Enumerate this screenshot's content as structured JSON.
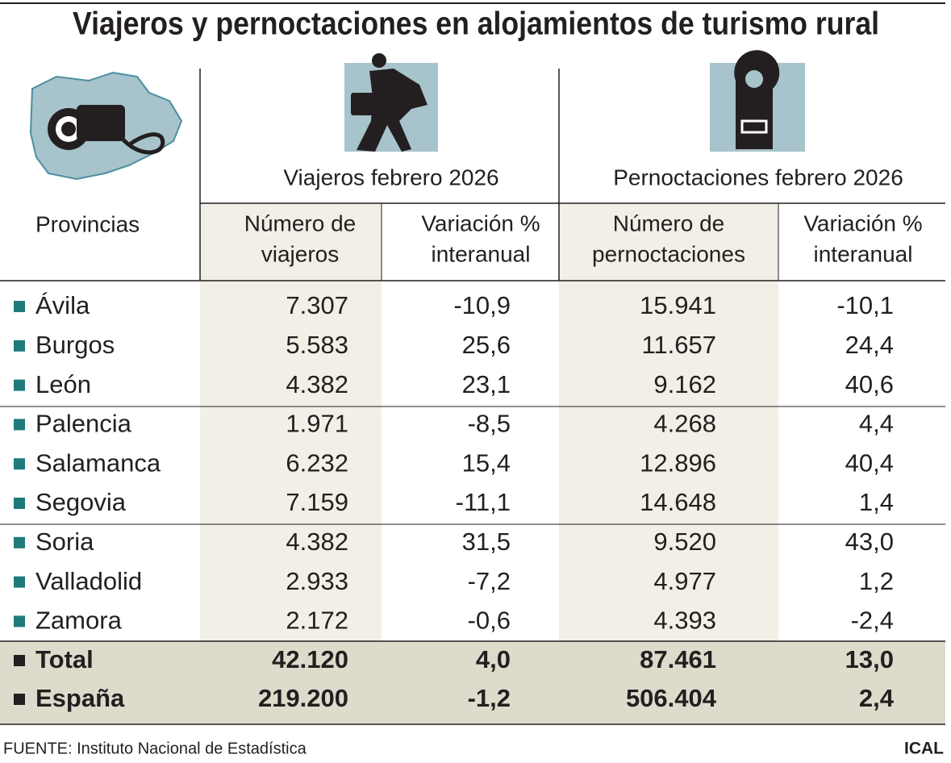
{
  "title": "Viajeros y pernoctaciones en alojamientos de turismo rural",
  "row_header": "Provincias",
  "groups": [
    {
      "label": "Viajeros febrero 2026"
    },
    {
      "label": "Pernoctaciones febrero 2026"
    }
  ],
  "columns": [
    [
      "Número de",
      "viajeros"
    ],
    [
      "Variación %",
      "interanual"
    ],
    [
      "Número de",
      "pernoctaciones"
    ],
    [
      "Variación %",
      "interanual"
    ]
  ],
  "rows": [
    {
      "name": "Ávila",
      "values": [
        "7.307",
        "-10,9",
        "15.941",
        "-10,1"
      ]
    },
    {
      "name": "Burgos",
      "values": [
        "5.583",
        "25,6",
        "11.657",
        "24,4"
      ]
    },
    {
      "name": "León",
      "values": [
        "4.382",
        "23,1",
        "9.162",
        "40,6"
      ]
    },
    {
      "name": "Palencia",
      "values": [
        "1.971",
        "-8,5",
        "4.268",
        "4,4"
      ]
    },
    {
      "name": "Salamanca",
      "values": [
        "6.232",
        "15,4",
        "12.896",
        "40,4"
      ]
    },
    {
      "name": "Segovia",
      "values": [
        "7.159",
        "-11,1",
        "14.648",
        "1,4"
      ]
    },
    {
      "name": "Soria",
      "values": [
        "4.382",
        "31,5",
        "9.520",
        "43,0"
      ]
    },
    {
      "name": "Valladolid",
      "values": [
        "2.933",
        "-7,2",
        "4.977",
        "1,2"
      ]
    },
    {
      "name": "Zamora",
      "values": [
        "2.172",
        "-0,6",
        "4.393",
        "-2,4"
      ]
    }
  ],
  "totals": [
    {
      "name": "Total",
      "values": [
        "42.120",
        "4,0",
        "87.461",
        "13,0"
      ]
    },
    {
      "name": "España",
      "values": [
        "219.200",
        "-1,2",
        "506.404",
        "2,4"
      ]
    }
  ],
  "footer": {
    "source": "FUENTE: Instituto Nacional de Estadística",
    "brand": "ICAL"
  }
}
